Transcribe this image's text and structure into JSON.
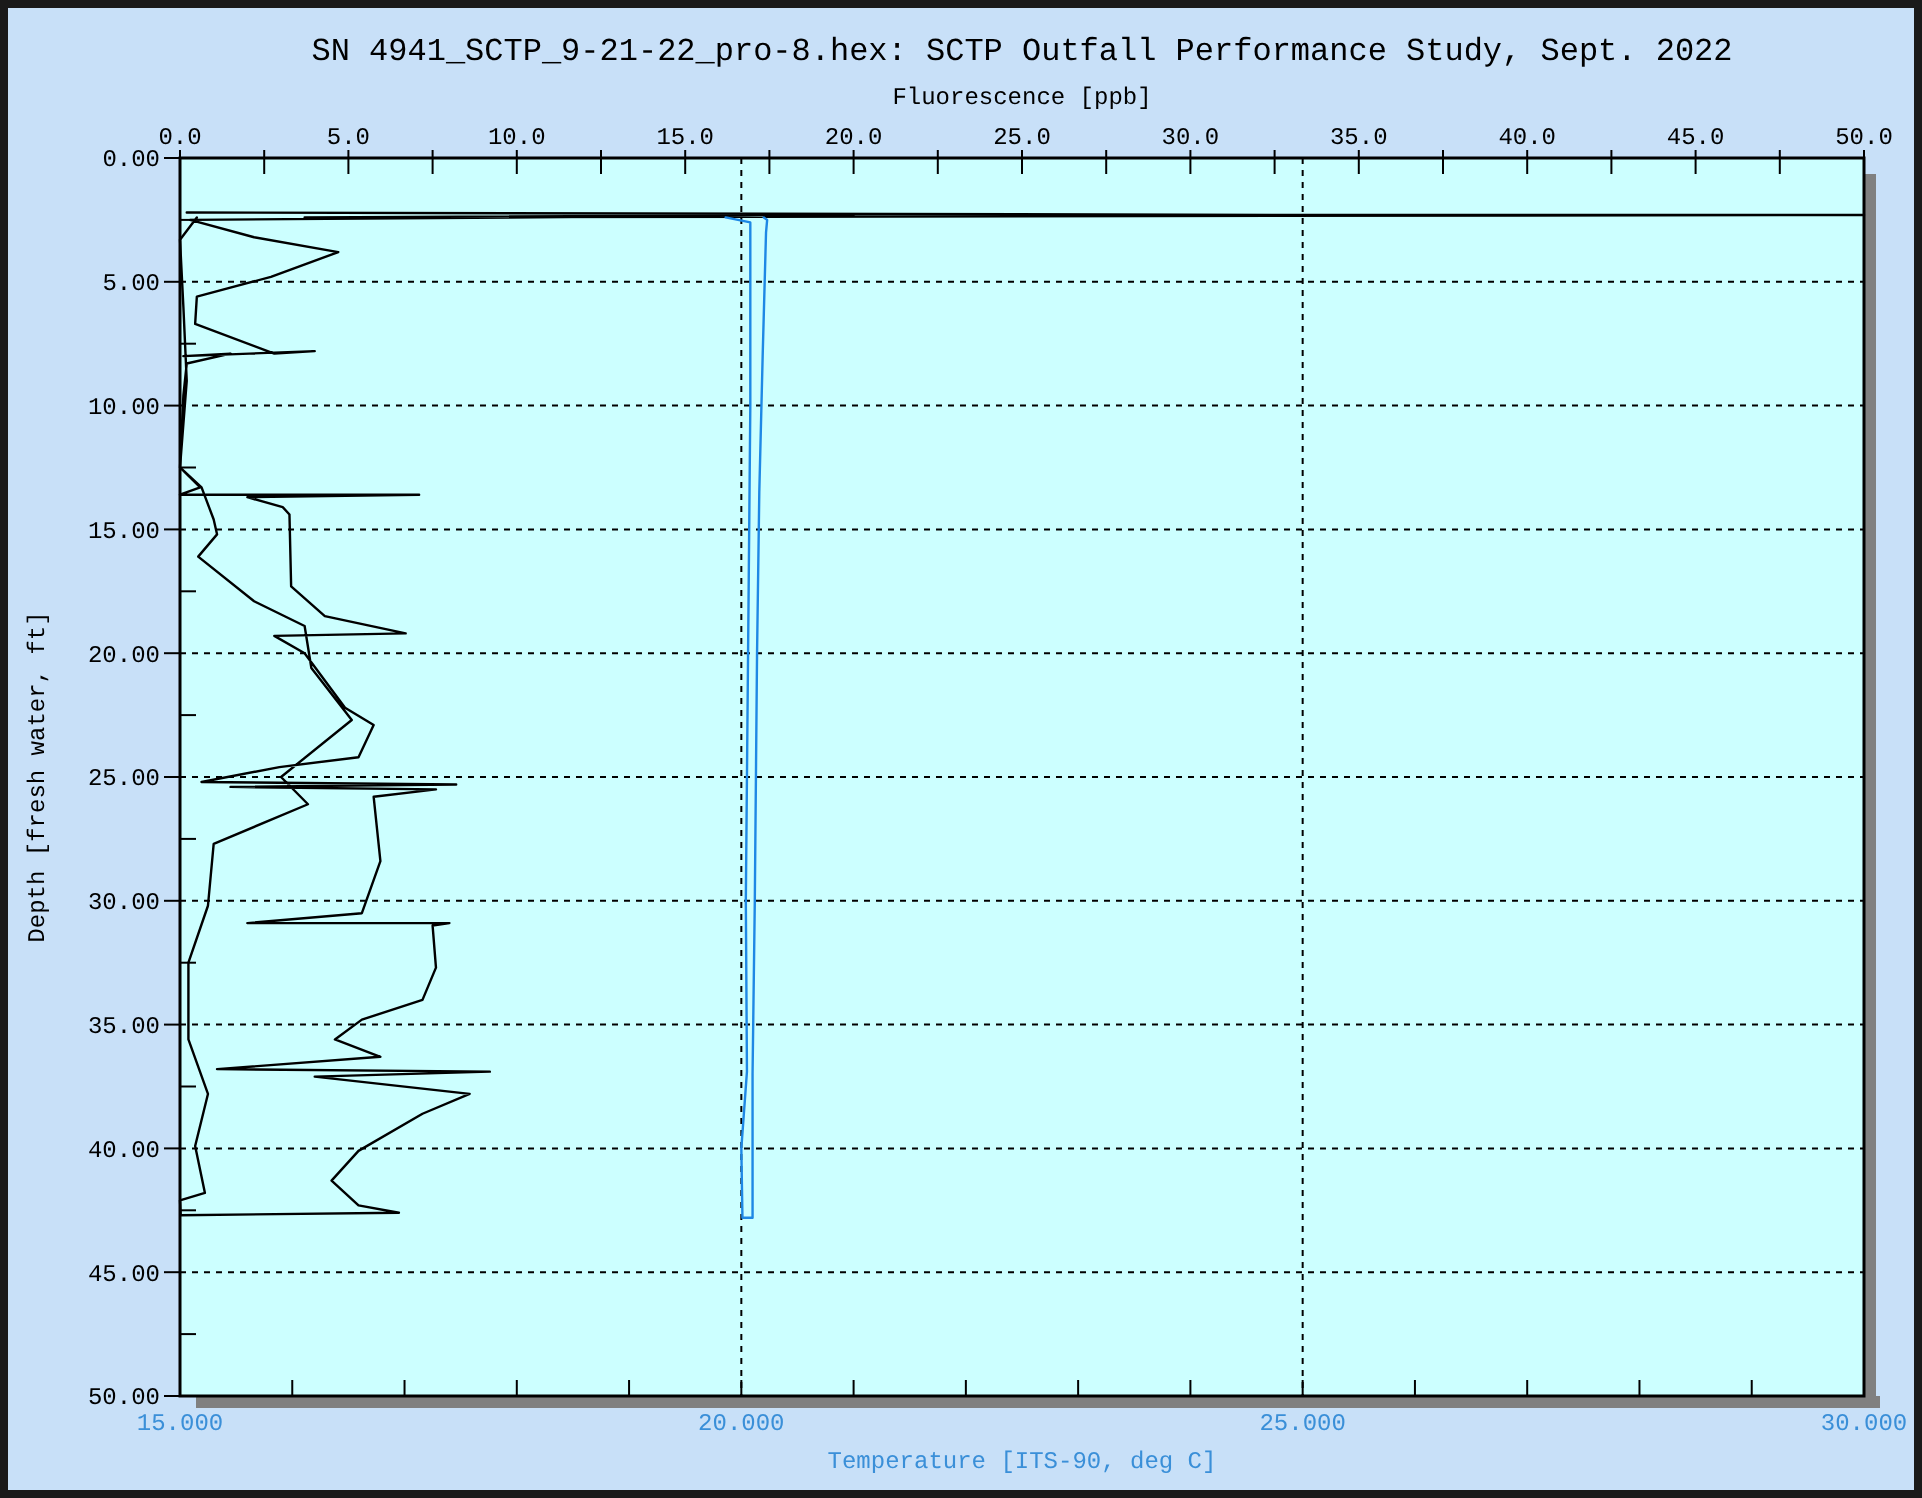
{
  "chart_data": {
    "type": "line",
    "title": "SN 4941_SCTP_9-21-22_pro-8.hex: SCTP Outfall Performance Study, Sept. 2022",
    "x2label": "Fluorescence [ppb]",
    "xlabel": "Temperature [ITS-90, deg C]",
    "ylabel": "Depth [fresh water, ft]",
    "xlim": [
      15,
      30
    ],
    "xticks": [
      {
        "value": 15,
        "label": "15.000"
      },
      {
        "value": 16,
        "label": null
      },
      {
        "value": 17,
        "label": null
      },
      {
        "value": 18,
        "label": null
      },
      {
        "value": 19,
        "label": null
      },
      {
        "value": 20,
        "label": "20.000"
      },
      {
        "value": 21,
        "label": null
      },
      {
        "value": 22,
        "label": null
      },
      {
        "value": 23,
        "label": null
      },
      {
        "value": 24,
        "label": null
      },
      {
        "value": 25,
        "label": "25.000"
      },
      {
        "value": 26,
        "label": null
      },
      {
        "value": 27,
        "label": null
      },
      {
        "value": 28,
        "label": null
      },
      {
        "value": 29,
        "label": null
      },
      {
        "value": 30,
        "label": "30.000"
      }
    ],
    "x2lim": [
      0,
      50
    ],
    "x2ticks": [
      {
        "value": 0,
        "label": "0.0"
      },
      {
        "value": 2.5,
        "label": null
      },
      {
        "value": 5,
        "label": "5.0"
      },
      {
        "value": 7.5,
        "label": null
      },
      {
        "value": 10,
        "label": "10.0"
      },
      {
        "value": 12.5,
        "label": null
      },
      {
        "value": 15,
        "label": "15.0"
      },
      {
        "value": 17.5,
        "label": null
      },
      {
        "value": 20,
        "label": "20.0"
      },
      {
        "value": 22.5,
        "label": null
      },
      {
        "value": 25,
        "label": "25.0"
      },
      {
        "value": 27.5,
        "label": null
      },
      {
        "value": 30,
        "label": "30.0"
      },
      {
        "value": 32.5,
        "label": null
      },
      {
        "value": 35,
        "label": "35.0"
      },
      {
        "value": 37.5,
        "label": null
      },
      {
        "value": 40,
        "label": "40.0"
      },
      {
        "value": 42.5,
        "label": null
      },
      {
        "value": 45,
        "label": "45.0"
      },
      {
        "value": 47.5,
        "label": null
      },
      {
        "value": 50,
        "label": "50.0"
      }
    ],
    "ylim": [
      50,
      0
    ],
    "yticks": [
      {
        "value": 0,
        "label": "0.00"
      },
      {
        "value": 2.5,
        "label": null
      },
      {
        "value": 5,
        "label": "5.00"
      },
      {
        "value": 7.5,
        "label": null
      },
      {
        "value": 10,
        "label": "10.00"
      },
      {
        "value": 12.5,
        "label": null
      },
      {
        "value": 15,
        "label": "15.00"
      },
      {
        "value": 17.5,
        "label": null
      },
      {
        "value": 20,
        "label": "20.00"
      },
      {
        "value": 22.5,
        "label": null
      },
      {
        "value": 25,
        "label": "25.00"
      },
      {
        "value": 27.5,
        "label": null
      },
      {
        "value": 30,
        "label": "30.00"
      },
      {
        "value": 32.5,
        "label": null
      },
      {
        "value": 35,
        "label": "35.00"
      },
      {
        "value": 37.5,
        "label": null
      },
      {
        "value": 40,
        "label": "40.00"
      },
      {
        "value": 42.5,
        "label": null
      },
      {
        "value": 45,
        "label": "45.00"
      },
      {
        "value": 47.5,
        "label": null
      },
      {
        "value": 50,
        "label": "50.00"
      }
    ],
    "grid": true,
    "series": [
      {
        "type": "line",
        "axis": "x2",
        "color": "#000000",
        "x": [
          0.2,
          33.2,
          50,
          3.7,
          20,
          0.3,
          2.2,
          4.7,
          2.7,
          0.5,
          0.45,
          2.8,
          4.0,
          0.1,
          1.5,
          0.2,
          0.1,
          0,
          0.6,
          0,
          7.1,
          2,
          3.05,
          3.25,
          3.3,
          4.3,
          6.7,
          2.8,
          3.7,
          4.9,
          5.75,
          5.3,
          2.95,
          0.64,
          8.2,
          1.5,
          7.6,
          5.75,
          5.95,
          5.4,
          2.0,
          8.0,
          7.5,
          7.6,
          7.2,
          5.4,
          4.6,
          5.95,
          1.1,
          9.2,
          4,
          8.6,
          7.2,
          5.3,
          4.5,
          5.3,
          6.5,
          0.02,
          0,
          0.74,
          0.45,
          0.83,
          0.25,
          0.25,
          0.83,
          1.0,
          3.8,
          3.0,
          5.1,
          3.9,
          3.7,
          2.2,
          0.54,
          1.1,
          1.0,
          0.64,
          0,
          0.2,
          0.1,
          0,
          0.5
        ],
        "values": [
          2.2,
          2.3,
          2.3,
          2.4,
          2.3,
          2.5,
          3.2,
          3.8,
          4.8,
          5.6,
          6.7,
          7.9,
          7.8,
          8.0,
          7.9,
          8.3,
          9.6,
          12.5,
          13.3,
          13.6,
          13.6,
          13.7,
          14.1,
          14.4,
          17.3,
          18.5,
          19.2,
          19.3,
          20.0,
          22.2,
          22.9,
          24.2,
          24.6,
          25.2,
          25.3,
          25.4,
          25.5,
          25.8,
          28.4,
          30.5,
          30.9,
          30.9,
          31.0,
          32.7,
          34.0,
          34.8,
          35.6,
          36.3,
          36.8,
          36.9,
          37.1,
          37.8,
          38.6,
          40.1,
          41.3,
          42.3,
          42.6,
          42.7,
          42.1,
          41.8,
          39.9,
          37.8,
          35.6,
          32.5,
          30.2,
          27.7,
          26.1,
          25.0,
          22.7,
          20.6,
          18.9,
          17.9,
          16.1,
          15.2,
          14.6,
          13.3,
          12.5,
          9,
          6,
          3.3,
          2.4
        ]
      },
      {
        "type": "line",
        "color": "#1e88e5",
        "x": [
          19.86,
          20.08,
          20.08,
          20.06,
          20.04,
          20.05,
          20.0,
          20.01,
          20.1,
          20.1,
          20.1,
          20.12,
          20.14,
          20.16,
          20.19,
          20.22,
          20.23,
          20.2
        ],
        "values": [
          2.4,
          2.6,
          10,
          20,
          30,
          36.9,
          40,
          42.8,
          42.8,
          42,
          37,
          30,
          20,
          13.5,
          8,
          3,
          2.5,
          2.4
        ]
      }
    ]
  }
}
